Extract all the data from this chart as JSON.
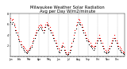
{
  "title": "Milwaukee Weather Solar Radiation",
  "subtitle": "Avg per Day W/m2/minute",
  "title_fontsize": 3.8,
  "background_color": "#ffffff",
  "plot_bg_color": "#ffffff",
  "grid_color": "#888888",
  "ylim": [
    0,
    8
  ],
  "ytick_values": [
    2,
    4,
    6,
    8
  ],
  "ytick_fontsize": 2.5,
  "xtick_fontsize": 2.2,
  "red_color": "#ff0000",
  "black_color": "#000000",
  "marker_size": 0.8,
  "x_values": [
    0,
    1,
    2,
    3,
    4,
    5,
    6,
    7,
    8,
    9,
    10,
    11,
    12,
    13,
    14,
    15,
    16,
    17,
    18,
    19,
    20,
    21,
    22,
    23,
    24,
    25,
    26,
    27,
    28,
    29,
    30,
    31,
    32,
    33,
    34,
    35,
    36,
    37,
    38,
    39,
    40,
    41,
    42,
    43,
    44,
    45,
    46,
    47,
    48,
    49,
    50,
    51,
    52,
    53,
    54,
    55,
    56,
    57,
    58,
    59,
    60,
    61,
    62,
    63,
    64,
    65,
    66,
    67,
    68,
    69,
    70,
    71,
    72,
    73,
    74,
    75,
    76,
    77,
    78,
    79,
    80,
    81,
    82,
    83,
    84,
    85,
    86,
    87,
    88,
    89,
    90,
    91,
    92,
    93,
    94,
    95,
    96,
    97,
    98,
    99,
    100,
    101,
    102,
    103,
    104
  ],
  "red_values": [
    7.1,
    6.8,
    7.0,
    6.2,
    5.5,
    5.0,
    4.5,
    3.8,
    3.2,
    2.8,
    2.3,
    2.0,
    1.8,
    1.5,
    1.2,
    1.0,
    1.2,
    1.5,
    1.8,
    2.2,
    2.8,
    3.5,
    4.0,
    4.5,
    5.0,
    5.5,
    5.8,
    6.0,
    5.8,
    5.5,
    5.0,
    5.5,
    6.0,
    6.5,
    6.2,
    5.8,
    5.5,
    5.0,
    4.5,
    4.0,
    3.5,
    3.0,
    2.5,
    2.0,
    1.5,
    1.2,
    1.8,
    2.2,
    2.5,
    1.8,
    1.2,
    0.8,
    0.5,
    0.8,
    1.2,
    1.8,
    2.5,
    3.2,
    4.0,
    5.0,
    5.8,
    6.5,
    7.0,
    6.8,
    6.5,
    6.0,
    5.5,
    5.0,
    4.5,
    4.0,
    3.5,
    3.2,
    2.8,
    2.5,
    2.2,
    2.0,
    1.8,
    2.0,
    2.5,
    3.0,
    3.5,
    4.0,
    3.5,
    3.0,
    2.5,
    2.0,
    1.5,
    1.2,
    1.0,
    1.2,
    1.5,
    2.0,
    2.5,
    3.0,
    3.5,
    4.0,
    3.5,
    3.0,
    2.5,
    2.0,
    1.8,
    1.5,
    1.2,
    1.0,
    0.8
  ],
  "black_values": [
    6.5,
    6.2,
    6.5,
    5.8,
    5.0,
    4.5,
    4.0,
    3.3,
    2.8,
    2.3,
    1.8,
    1.5,
    1.3,
    1.0,
    0.8,
    0.7,
    0.9,
    1.2,
    1.5,
    1.9,
    2.5,
    3.0,
    3.5,
    4.0,
    4.5,
    5.0,
    5.2,
    5.5,
    5.2,
    5.0,
    4.5,
    5.0,
    5.5,
    6.0,
    5.8,
    5.2,
    5.0,
    4.5,
    4.0,
    3.5,
    3.0,
    2.5,
    2.0,
    1.5,
    1.0,
    0.8,
    1.3,
    1.8,
    2.0,
    1.3,
    0.8,
    0.5,
    0.3,
    0.5,
    0.8,
    1.3,
    2.0,
    2.8,
    3.5,
    4.5,
    5.2,
    6.0,
    6.5,
    6.2,
    6.0,
    5.5,
    5.0,
    4.5,
    4.0,
    3.5,
    3.0,
    2.8,
    2.3,
    2.0,
    1.8,
    1.5,
    1.3,
    1.5,
    2.0,
    2.5,
    3.0,
    3.5,
    3.0,
    2.5,
    2.0,
    1.5,
    1.0,
    0.8,
    0.7,
    0.8,
    1.0,
    1.5,
    2.0,
    2.5,
    3.0,
    3.5,
    3.0,
    2.5,
    2.0,
    1.5,
    1.3,
    1.0,
    0.8,
    0.7,
    0.5
  ],
  "vline_positions": [
    8,
    17,
    26,
    35,
    44,
    53,
    62,
    71,
    80,
    89,
    98
  ],
  "month_tick_positions": [
    0,
    8,
    17,
    26,
    35,
    44,
    53,
    62,
    71,
    80,
    89,
    98
  ],
  "month_labels": [
    "Jan",
    "Feb",
    "Mar",
    "Apr",
    "May",
    "Jun",
    "Jul",
    "Aug",
    "Sep",
    "Oct",
    "Nov",
    "Dec"
  ]
}
